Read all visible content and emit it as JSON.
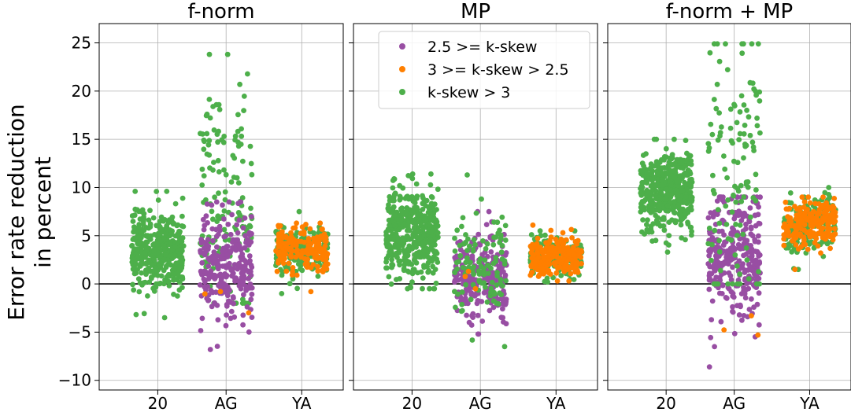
{
  "figure": {
    "ylabel_line1": "Error rate reduction",
    "ylabel_line2": "in percent"
  },
  "legend": {
    "entries": [
      {
        "label": "2.5 >= k-skew",
        "color": "#984ea3"
      },
      {
        "label": "3 >= k-skew > 2.5",
        "color": "#ff7f00"
      },
      {
        "label": "k-skew > 3",
        "color": "#4daf4a"
      }
    ],
    "placement": "top-right of middle panel"
  },
  "chart_data": {
    "type": "scatter",
    "style": "strip plot with horizontal jitter",
    "shared_y": true,
    "ylim": [
      -11,
      27
    ],
    "yticks": [
      -10,
      -5,
      0,
      5,
      10,
      15,
      20,
      25
    ],
    "ytick_labels": [
      "−10",
      "−5",
      "0",
      "5",
      "10",
      "15",
      "20",
      "25"
    ],
    "reference_line_y": 0,
    "grid": true,
    "categories": [
      "20",
      "AG",
      "YA"
    ],
    "panels": [
      {
        "title": "f-norm",
        "groups": [
          {
            "category": "20",
            "series": "k-skew > 3",
            "n": 420,
            "center": 3.6,
            "spread": 2.0,
            "min": -3.5,
            "max": 9.6
          },
          {
            "category": "AG",
            "series": "k-skew > 3",
            "n": 140,
            "center": 8.0,
            "spread": 6.5,
            "min": -2.0,
            "max": 23.8
          },
          {
            "category": "AG",
            "series": "2.5 >= k-skew",
            "n": 260,
            "center": 1.5,
            "spread": 2.8,
            "min": -6.8,
            "max": 8.5
          },
          {
            "category": "AG",
            "series": "3 >= k-skew > 2.5",
            "n": 3,
            "center": -1.5,
            "spread": 1.0,
            "min": -3.0,
            "max": -0.8
          },
          {
            "category": "YA",
            "series": "k-skew > 3",
            "n": 180,
            "center": 3.5,
            "spread": 1.4,
            "min": -1.0,
            "max": 7.5
          },
          {
            "category": "YA",
            "series": "3 >= k-skew > 2.5",
            "n": 180,
            "center": 3.6,
            "spread": 1.2,
            "min": -0.8,
            "max": 6.3
          }
        ]
      },
      {
        "title": "MP",
        "groups": [
          {
            "category": "20",
            "series": "k-skew > 3",
            "n": 420,
            "center": 5.2,
            "spread": 2.3,
            "min": -0.5,
            "max": 11.4
          },
          {
            "category": "AG",
            "series": "2.5 >= k-skew",
            "n": 240,
            "center": 1.0,
            "spread": 2.0,
            "min": -5.2,
            "max": 7.5
          },
          {
            "category": "AG",
            "series": "k-skew > 3",
            "n": 110,
            "center": 2.0,
            "spread": 2.6,
            "min": -6.5,
            "max": 11.3
          },
          {
            "category": "AG",
            "series": "3 >= k-skew > 2.5",
            "n": 3,
            "center": 0.5,
            "spread": 0.8,
            "min": -0.5,
            "max": 1.3
          },
          {
            "category": "YA",
            "series": "k-skew > 3",
            "n": 160,
            "center": 2.8,
            "spread": 1.0,
            "min": 0.2,
            "max": 5.5
          },
          {
            "category": "YA",
            "series": "3 >= k-skew > 2.5",
            "n": 200,
            "center": 2.8,
            "spread": 1.0,
            "min": 0.3,
            "max": 6.1
          }
        ]
      },
      {
        "title": "f-norm + MP",
        "groups": [
          {
            "category": "20",
            "series": "k-skew > 3",
            "n": 420,
            "center": 9.6,
            "spread": 2.1,
            "min": 3.3,
            "max": 15.0
          },
          {
            "category": "AG",
            "series": "2.5 >= k-skew",
            "n": 300,
            "center": 3.0,
            "spread": 3.2,
            "min": -8.6,
            "max": 9.0
          },
          {
            "category": "AG",
            "series": "k-skew > 3",
            "n": 120,
            "center": 12.0,
            "spread": 7.0,
            "min": 0.0,
            "max": 24.9
          },
          {
            "category": "AG",
            "series": "3 >= k-skew > 2.5",
            "n": 3,
            "center": -4.0,
            "spread": 1.0,
            "min": -5.3,
            "max": -3.3
          },
          {
            "category": "YA",
            "series": "k-skew > 3",
            "n": 170,
            "center": 6.2,
            "spread": 1.5,
            "min": 1.5,
            "max": 10.0
          },
          {
            "category": "YA",
            "series": "3 >= k-skew > 2.5",
            "n": 190,
            "center": 6.3,
            "spread": 1.2,
            "min": 1.5,
            "max": 9.0
          }
        ]
      }
    ]
  }
}
